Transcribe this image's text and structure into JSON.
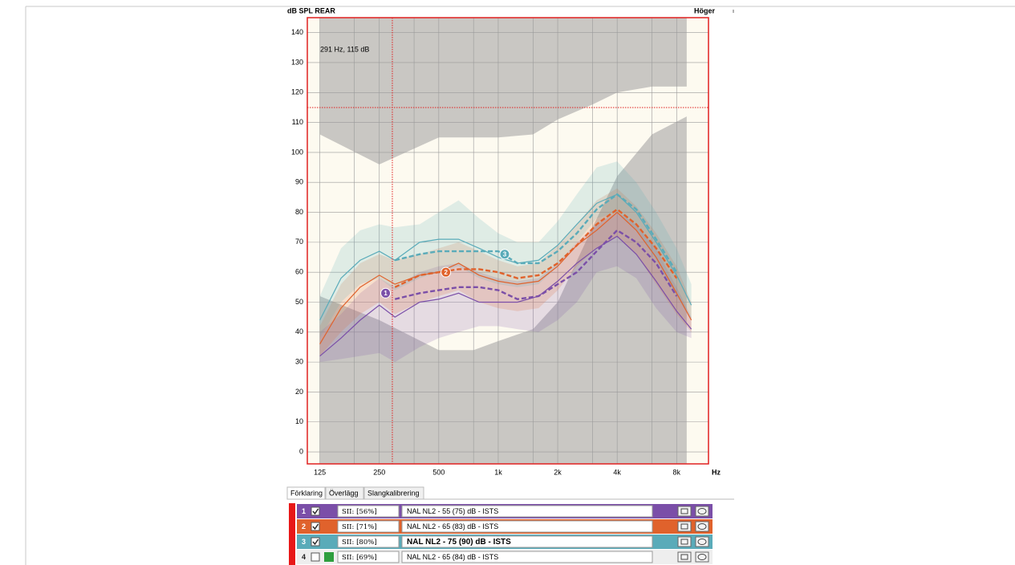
{
  "header": {
    "title": "dB SPL REAR",
    "side": "Höger"
  },
  "chart_data": {
    "type": "line",
    "x": [
      125,
      160,
      200,
      250,
      300,
      400,
      500,
      630,
      800,
      1000,
      1250,
      1600,
      2000,
      2500,
      3150,
      4000,
      5000,
      6300,
      8000,
      9500
    ],
    "xlim": [
      108,
      11600
    ],
    "xscale": "log",
    "xticks": [
      125,
      250,
      500,
      {
        "value": 1000,
        "label": "1k"
      },
      {
        "value": 2000,
        "label": "2k"
      },
      {
        "value": 4000,
        "label": "4k"
      },
      {
        "value": 8000,
        "label": "8k"
      }
    ],
    "minor_xgrid": [
      187,
      375,
      750,
      1500,
      3000,
      6000
    ],
    "xlabel": "Hz",
    "ylim": [
      -4,
      145
    ],
    "yticks": [
      0,
      10,
      20,
      30,
      40,
      50,
      60,
      70,
      80,
      90,
      100,
      110,
      120,
      130,
      140
    ],
    "grid": true,
    "limits": {
      "x": [
        125,
        250,
        500,
        750,
        1000,
        1500,
        2000,
        3000,
        4000,
        6000,
        9000
      ],
      "upper": [
        106,
        96,
        105,
        105,
        105,
        106,
        111,
        116,
        120,
        122,
        122
      ],
      "lower": [
        52,
        44,
        34,
        34,
        37,
        41,
        50,
        75,
        92,
        106,
        112
      ]
    },
    "series": [
      {
        "color": "#7b4fa8",
        "values": [
          32,
          38,
          44,
          49,
          45,
          50,
          51,
          53,
          50,
          50,
          50,
          52,
          57,
          63,
          68,
          72,
          66,
          57,
          47,
          41
        ],
        "target": [
          null,
          null,
          null,
          null,
          51,
          53,
          54,
          55,
          55,
          54,
          51,
          52,
          56,
          60,
          67,
          74,
          70,
          63,
          52,
          null
        ],
        "band_low": [
          30,
          31,
          32,
          33,
          30,
          35,
          38,
          40,
          42,
          42,
          41,
          40,
          44,
          50,
          60,
          62,
          58,
          48,
          40,
          38
        ],
        "band_high": [
          40,
          46,
          53,
          58,
          55,
          60,
          62,
          63,
          60,
          58,
          57,
          58,
          63,
          70,
          76,
          80,
          76,
          68,
          55,
          45
        ]
      },
      {
        "color": "#e0622c",
        "values": [
          36,
          48,
          55,
          59,
          56,
          59,
          60,
          63,
          59,
          57,
          56,
          57,
          62,
          69,
          74,
          80,
          74,
          65,
          53,
          44
        ],
        "target": [
          null,
          null,
          null,
          null,
          55,
          59,
          60,
          61,
          61,
          60,
          58,
          59,
          63,
          69,
          76,
          81,
          76,
          68,
          58,
          null
        ],
        "band_low": [
          32,
          40,
          46,
          50,
          46,
          50,
          52,
          54,
          50,
          48,
          47,
          48,
          54,
          62,
          68,
          72,
          66,
          56,
          46,
          40
        ],
        "band_high": [
          42,
          56,
          63,
          66,
          64,
          66,
          68,
          70,
          67,
          64,
          62,
          63,
          69,
          76,
          84,
          88,
          82,
          73,
          62,
          50
        ]
      },
      {
        "color": "#5aabb9",
        "values": [
          44,
          58,
          64,
          67,
          64,
          70,
          71,
          71,
          68,
          65,
          63,
          64,
          69,
          76,
          83,
          86,
          80,
          70,
          59,
          49
        ],
        "target": [
          null,
          null,
          null,
          null,
          64,
          66,
          67,
          67,
          67,
          67,
          63,
          63,
          67,
          73,
          81,
          86,
          81,
          71,
          60,
          null
        ],
        "band_low": [
          38,
          50,
          56,
          58,
          54,
          58,
          60,
          62,
          58,
          56,
          55,
          56,
          62,
          70,
          78,
          80,
          74,
          64,
          52,
          44
        ],
        "band_high": [
          52,
          68,
          74,
          76,
          75,
          76,
          80,
          84,
          78,
          73,
          70,
          70,
          77,
          86,
          95,
          97,
          90,
          80,
          68,
          56
        ]
      }
    ],
    "markers": [
      {
        "label": "1",
        "x": 269,
        "y": 53
      },
      {
        "label": "2",
        "x": 543,
        "y": 60
      },
      {
        "label": "3",
        "x": 1078,
        "y": 66
      }
    ],
    "cursor": {
      "x": 291,
      "y": 115,
      "label": "291 Hz, 115 dB"
    }
  },
  "tabs": [
    "Förklaring",
    "Överlägg",
    "Slangkalibrering"
  ],
  "legend_panel": {
    "rows": [
      {
        "number": "1",
        "checked": true,
        "color": "#7b4fa8",
        "sii": "SII: [56%]",
        "name": "NAL NL2 - 55 (75) dB - ISTS",
        "bold": false
      },
      {
        "number": "2",
        "checked": true,
        "color": "#e0622c",
        "sii": "SII: [71%]",
        "name": "NAL NL2 - 65 (83) dB - ISTS",
        "bold": false
      },
      {
        "number": "3",
        "checked": true,
        "color": "#5aabb9",
        "sii": "SII: [80%]",
        "name": "NAL NL2 - 75 (90) dB - ISTS",
        "bold": true
      },
      {
        "number": "4",
        "checked": false,
        "color": "#2e9e3e",
        "sii": "SII: [69%]",
        "name": "NAL NL2 - 65 (84) dB - ISTS",
        "bold": false
      }
    ]
  }
}
